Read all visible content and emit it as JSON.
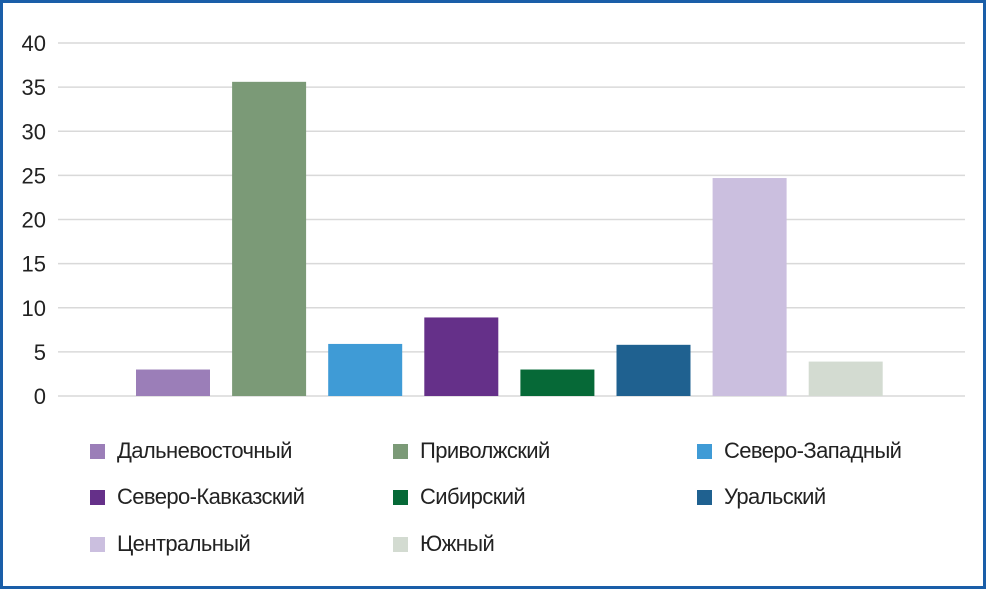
{
  "chart_data": {
    "type": "bar",
    "title": "",
    "xlabel": "",
    "ylabel": "",
    "ylim": [
      0,
      40
    ],
    "yticks": [
      0,
      5,
      10,
      15,
      20,
      25,
      30,
      35,
      40
    ],
    "grid": true,
    "legend_placement": "bottom",
    "categories": [
      "Дальневосточный",
      "Приволжский",
      "Северо-Западный",
      "Северо-Кавказский",
      "Сибирский",
      "Уральский",
      "Центральный",
      "Южный"
    ],
    "values": [
      3.0,
      35.6,
      5.9,
      8.9,
      3.0,
      5.8,
      24.7,
      3.9
    ],
    "colors": [
      "#9b7eb8",
      "#7b9a77",
      "#3f9bd6",
      "#653089",
      "#066937",
      "#1f6190",
      "#cbbfdf",
      "#d3dbd1"
    ]
  }
}
